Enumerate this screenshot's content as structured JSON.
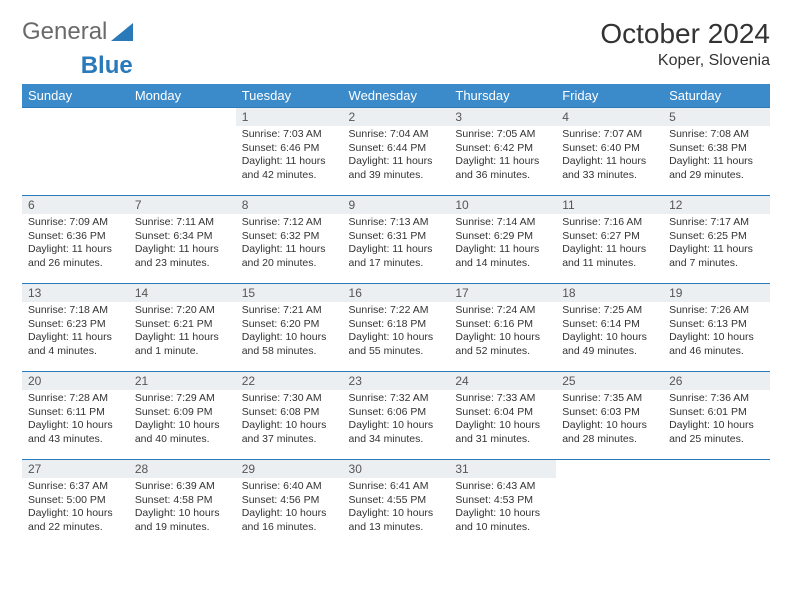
{
  "logo": {
    "text1": "General",
    "text2": "Blue"
  },
  "title": "October 2024",
  "location": "Koper, Slovenia",
  "colors": {
    "header_bg": "#3b8aca",
    "header_text": "#ffffff",
    "daynum_bg": "#eceff1",
    "border": "#2a7ab9",
    "logo_gray": "#6a6a6a",
    "logo_blue": "#2a7ab9"
  },
  "weekdays": [
    "Sunday",
    "Monday",
    "Tuesday",
    "Wednesday",
    "Thursday",
    "Friday",
    "Saturday"
  ],
  "weeks": [
    [
      null,
      null,
      {
        "d": "1",
        "sr": "Sunrise: 7:03 AM",
        "ss": "Sunset: 6:46 PM",
        "dl": "Daylight: 11 hours and 42 minutes."
      },
      {
        "d": "2",
        "sr": "Sunrise: 7:04 AM",
        "ss": "Sunset: 6:44 PM",
        "dl": "Daylight: 11 hours and 39 minutes."
      },
      {
        "d": "3",
        "sr": "Sunrise: 7:05 AM",
        "ss": "Sunset: 6:42 PM",
        "dl": "Daylight: 11 hours and 36 minutes."
      },
      {
        "d": "4",
        "sr": "Sunrise: 7:07 AM",
        "ss": "Sunset: 6:40 PM",
        "dl": "Daylight: 11 hours and 33 minutes."
      },
      {
        "d": "5",
        "sr": "Sunrise: 7:08 AM",
        "ss": "Sunset: 6:38 PM",
        "dl": "Daylight: 11 hours and 29 minutes."
      }
    ],
    [
      {
        "d": "6",
        "sr": "Sunrise: 7:09 AM",
        "ss": "Sunset: 6:36 PM",
        "dl": "Daylight: 11 hours and 26 minutes."
      },
      {
        "d": "7",
        "sr": "Sunrise: 7:11 AM",
        "ss": "Sunset: 6:34 PM",
        "dl": "Daylight: 11 hours and 23 minutes."
      },
      {
        "d": "8",
        "sr": "Sunrise: 7:12 AM",
        "ss": "Sunset: 6:32 PM",
        "dl": "Daylight: 11 hours and 20 minutes."
      },
      {
        "d": "9",
        "sr": "Sunrise: 7:13 AM",
        "ss": "Sunset: 6:31 PM",
        "dl": "Daylight: 11 hours and 17 minutes."
      },
      {
        "d": "10",
        "sr": "Sunrise: 7:14 AM",
        "ss": "Sunset: 6:29 PM",
        "dl": "Daylight: 11 hours and 14 minutes."
      },
      {
        "d": "11",
        "sr": "Sunrise: 7:16 AM",
        "ss": "Sunset: 6:27 PM",
        "dl": "Daylight: 11 hours and 11 minutes."
      },
      {
        "d": "12",
        "sr": "Sunrise: 7:17 AM",
        "ss": "Sunset: 6:25 PM",
        "dl": "Daylight: 11 hours and 7 minutes."
      }
    ],
    [
      {
        "d": "13",
        "sr": "Sunrise: 7:18 AM",
        "ss": "Sunset: 6:23 PM",
        "dl": "Daylight: 11 hours and 4 minutes."
      },
      {
        "d": "14",
        "sr": "Sunrise: 7:20 AM",
        "ss": "Sunset: 6:21 PM",
        "dl": "Daylight: 11 hours and 1 minute."
      },
      {
        "d": "15",
        "sr": "Sunrise: 7:21 AM",
        "ss": "Sunset: 6:20 PM",
        "dl": "Daylight: 10 hours and 58 minutes."
      },
      {
        "d": "16",
        "sr": "Sunrise: 7:22 AM",
        "ss": "Sunset: 6:18 PM",
        "dl": "Daylight: 10 hours and 55 minutes."
      },
      {
        "d": "17",
        "sr": "Sunrise: 7:24 AM",
        "ss": "Sunset: 6:16 PM",
        "dl": "Daylight: 10 hours and 52 minutes."
      },
      {
        "d": "18",
        "sr": "Sunrise: 7:25 AM",
        "ss": "Sunset: 6:14 PM",
        "dl": "Daylight: 10 hours and 49 minutes."
      },
      {
        "d": "19",
        "sr": "Sunrise: 7:26 AM",
        "ss": "Sunset: 6:13 PM",
        "dl": "Daylight: 10 hours and 46 minutes."
      }
    ],
    [
      {
        "d": "20",
        "sr": "Sunrise: 7:28 AM",
        "ss": "Sunset: 6:11 PM",
        "dl": "Daylight: 10 hours and 43 minutes."
      },
      {
        "d": "21",
        "sr": "Sunrise: 7:29 AM",
        "ss": "Sunset: 6:09 PM",
        "dl": "Daylight: 10 hours and 40 minutes."
      },
      {
        "d": "22",
        "sr": "Sunrise: 7:30 AM",
        "ss": "Sunset: 6:08 PM",
        "dl": "Daylight: 10 hours and 37 minutes."
      },
      {
        "d": "23",
        "sr": "Sunrise: 7:32 AM",
        "ss": "Sunset: 6:06 PM",
        "dl": "Daylight: 10 hours and 34 minutes."
      },
      {
        "d": "24",
        "sr": "Sunrise: 7:33 AM",
        "ss": "Sunset: 6:04 PM",
        "dl": "Daylight: 10 hours and 31 minutes."
      },
      {
        "d": "25",
        "sr": "Sunrise: 7:35 AM",
        "ss": "Sunset: 6:03 PM",
        "dl": "Daylight: 10 hours and 28 minutes."
      },
      {
        "d": "26",
        "sr": "Sunrise: 7:36 AM",
        "ss": "Sunset: 6:01 PM",
        "dl": "Daylight: 10 hours and 25 minutes."
      }
    ],
    [
      {
        "d": "27",
        "sr": "Sunrise: 6:37 AM",
        "ss": "Sunset: 5:00 PM",
        "dl": "Daylight: 10 hours and 22 minutes."
      },
      {
        "d": "28",
        "sr": "Sunrise: 6:39 AM",
        "ss": "Sunset: 4:58 PM",
        "dl": "Daylight: 10 hours and 19 minutes."
      },
      {
        "d": "29",
        "sr": "Sunrise: 6:40 AM",
        "ss": "Sunset: 4:56 PM",
        "dl": "Daylight: 10 hours and 16 minutes."
      },
      {
        "d": "30",
        "sr": "Sunrise: 6:41 AM",
        "ss": "Sunset: 4:55 PM",
        "dl": "Daylight: 10 hours and 13 minutes."
      },
      {
        "d": "31",
        "sr": "Sunrise: 6:43 AM",
        "ss": "Sunset: 4:53 PM",
        "dl": "Daylight: 10 hours and 10 minutes."
      },
      null,
      null
    ]
  ]
}
